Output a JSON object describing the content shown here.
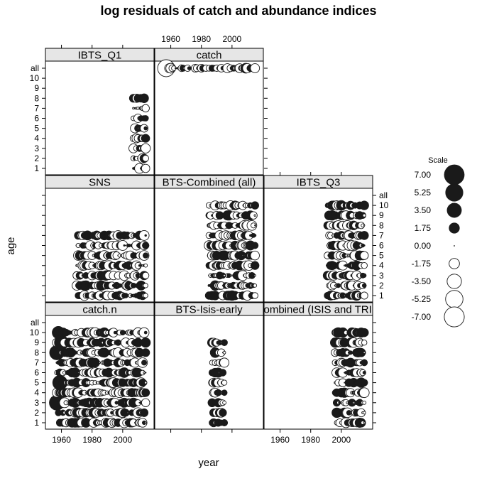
{
  "chart_data": {
    "type": "scatter",
    "title": "log residuals of catch and abundance indices",
    "xlabel": "year",
    "ylabel": "age",
    "xlim": [
      1950,
      2020
    ],
    "x_ticks": [
      "1960",
      "1980",
      "2000"
    ],
    "y_levels": [
      "1",
      "2",
      "3",
      "4",
      "5",
      "6",
      "7",
      "8",
      "9",
      "10",
      "all"
    ],
    "panel_layout": "3 columns x 3 rows, bottom-to-top",
    "panels": [
      {
        "name": "catch.n",
        "ages": [
          "1",
          "2",
          "3",
          "4",
          "5",
          "6",
          "7",
          "8",
          "9",
          "10"
        ],
        "year_range": [
          1957,
          2015
        ],
        "large_points": [
          {
            "age": "3",
            "x": 1957,
            "value": 3.9
          },
          {
            "age": "5",
            "x": 1959,
            "value": 3.6
          },
          {
            "age": "8",
            "x": 1957,
            "value": 3.6
          },
          {
            "age": "9",
            "x": 1960,
            "value": 3.4
          },
          {
            "age": "10",
            "x": 1958,
            "value": 2.6
          }
        ]
      },
      {
        "name": "BTS-Isis-early",
        "ages": [
          "1",
          "2",
          "3",
          "4",
          "5",
          "6",
          "7",
          "8",
          "9"
        ],
        "year_range": [
          1987,
          1995
        ]
      },
      {
        "name": "BTS-Combined (ISIS and TRIDENS)",
        "ages": [
          "1",
          "2",
          "3",
          "4",
          "5",
          "6",
          "7",
          "8",
          "9",
          "10"
        ],
        "year_range": [
          1996,
          2015
        ]
      },
      {
        "name": "SNS",
        "ages": [
          "1",
          "2",
          "3",
          "4",
          "5",
          "6",
          "7"
        ],
        "year_range": [
          1970,
          2015
        ]
      },
      {
        "name": "BTS-Combined (all)",
        "ages": [
          "1",
          "2",
          "3",
          "4",
          "5",
          "6",
          "7",
          "8",
          "9",
          "10"
        ],
        "year_range": [
          1985,
          2015
        ]
      },
      {
        "name": "IBTS_Q3",
        "ages": [
          "1",
          "2",
          "3",
          "4",
          "5",
          "6",
          "7",
          "8",
          "9",
          "10"
        ],
        "year_range": [
          1991,
          2015
        ]
      },
      {
        "name": "IBTS_Q1",
        "ages": [
          "1",
          "2",
          "3",
          "4",
          "5",
          "6",
          "7",
          "8"
        ],
        "year_range": [
          2007,
          2015
        ]
      },
      {
        "name": "catch",
        "ages": [
          "all"
        ],
        "year_range": [
          1957,
          2015
        ],
        "large_points": [
          {
            "age": "all",
            "x": 1957,
            "value": -5.0
          }
        ]
      }
    ],
    "legend": {
      "title": "Scale",
      "placement": "right",
      "entries": [
        {
          "label": "7.00",
          "value": 7.0
        },
        {
          "label": "5.25",
          "value": 5.25
        },
        {
          "label": "3.50",
          "value": 3.5
        },
        {
          "label": "1.75",
          "value": 1.75
        },
        {
          "label": "0.00",
          "value": 0.0
        },
        {
          "label": "-1.75",
          "value": -1.75
        },
        {
          "label": "-3.50",
          "value": -3.5
        },
        {
          "label": "-5.25",
          "value": -5.25
        },
        {
          "label": "-7.00",
          "value": -7.0
        }
      ]
    }
  }
}
